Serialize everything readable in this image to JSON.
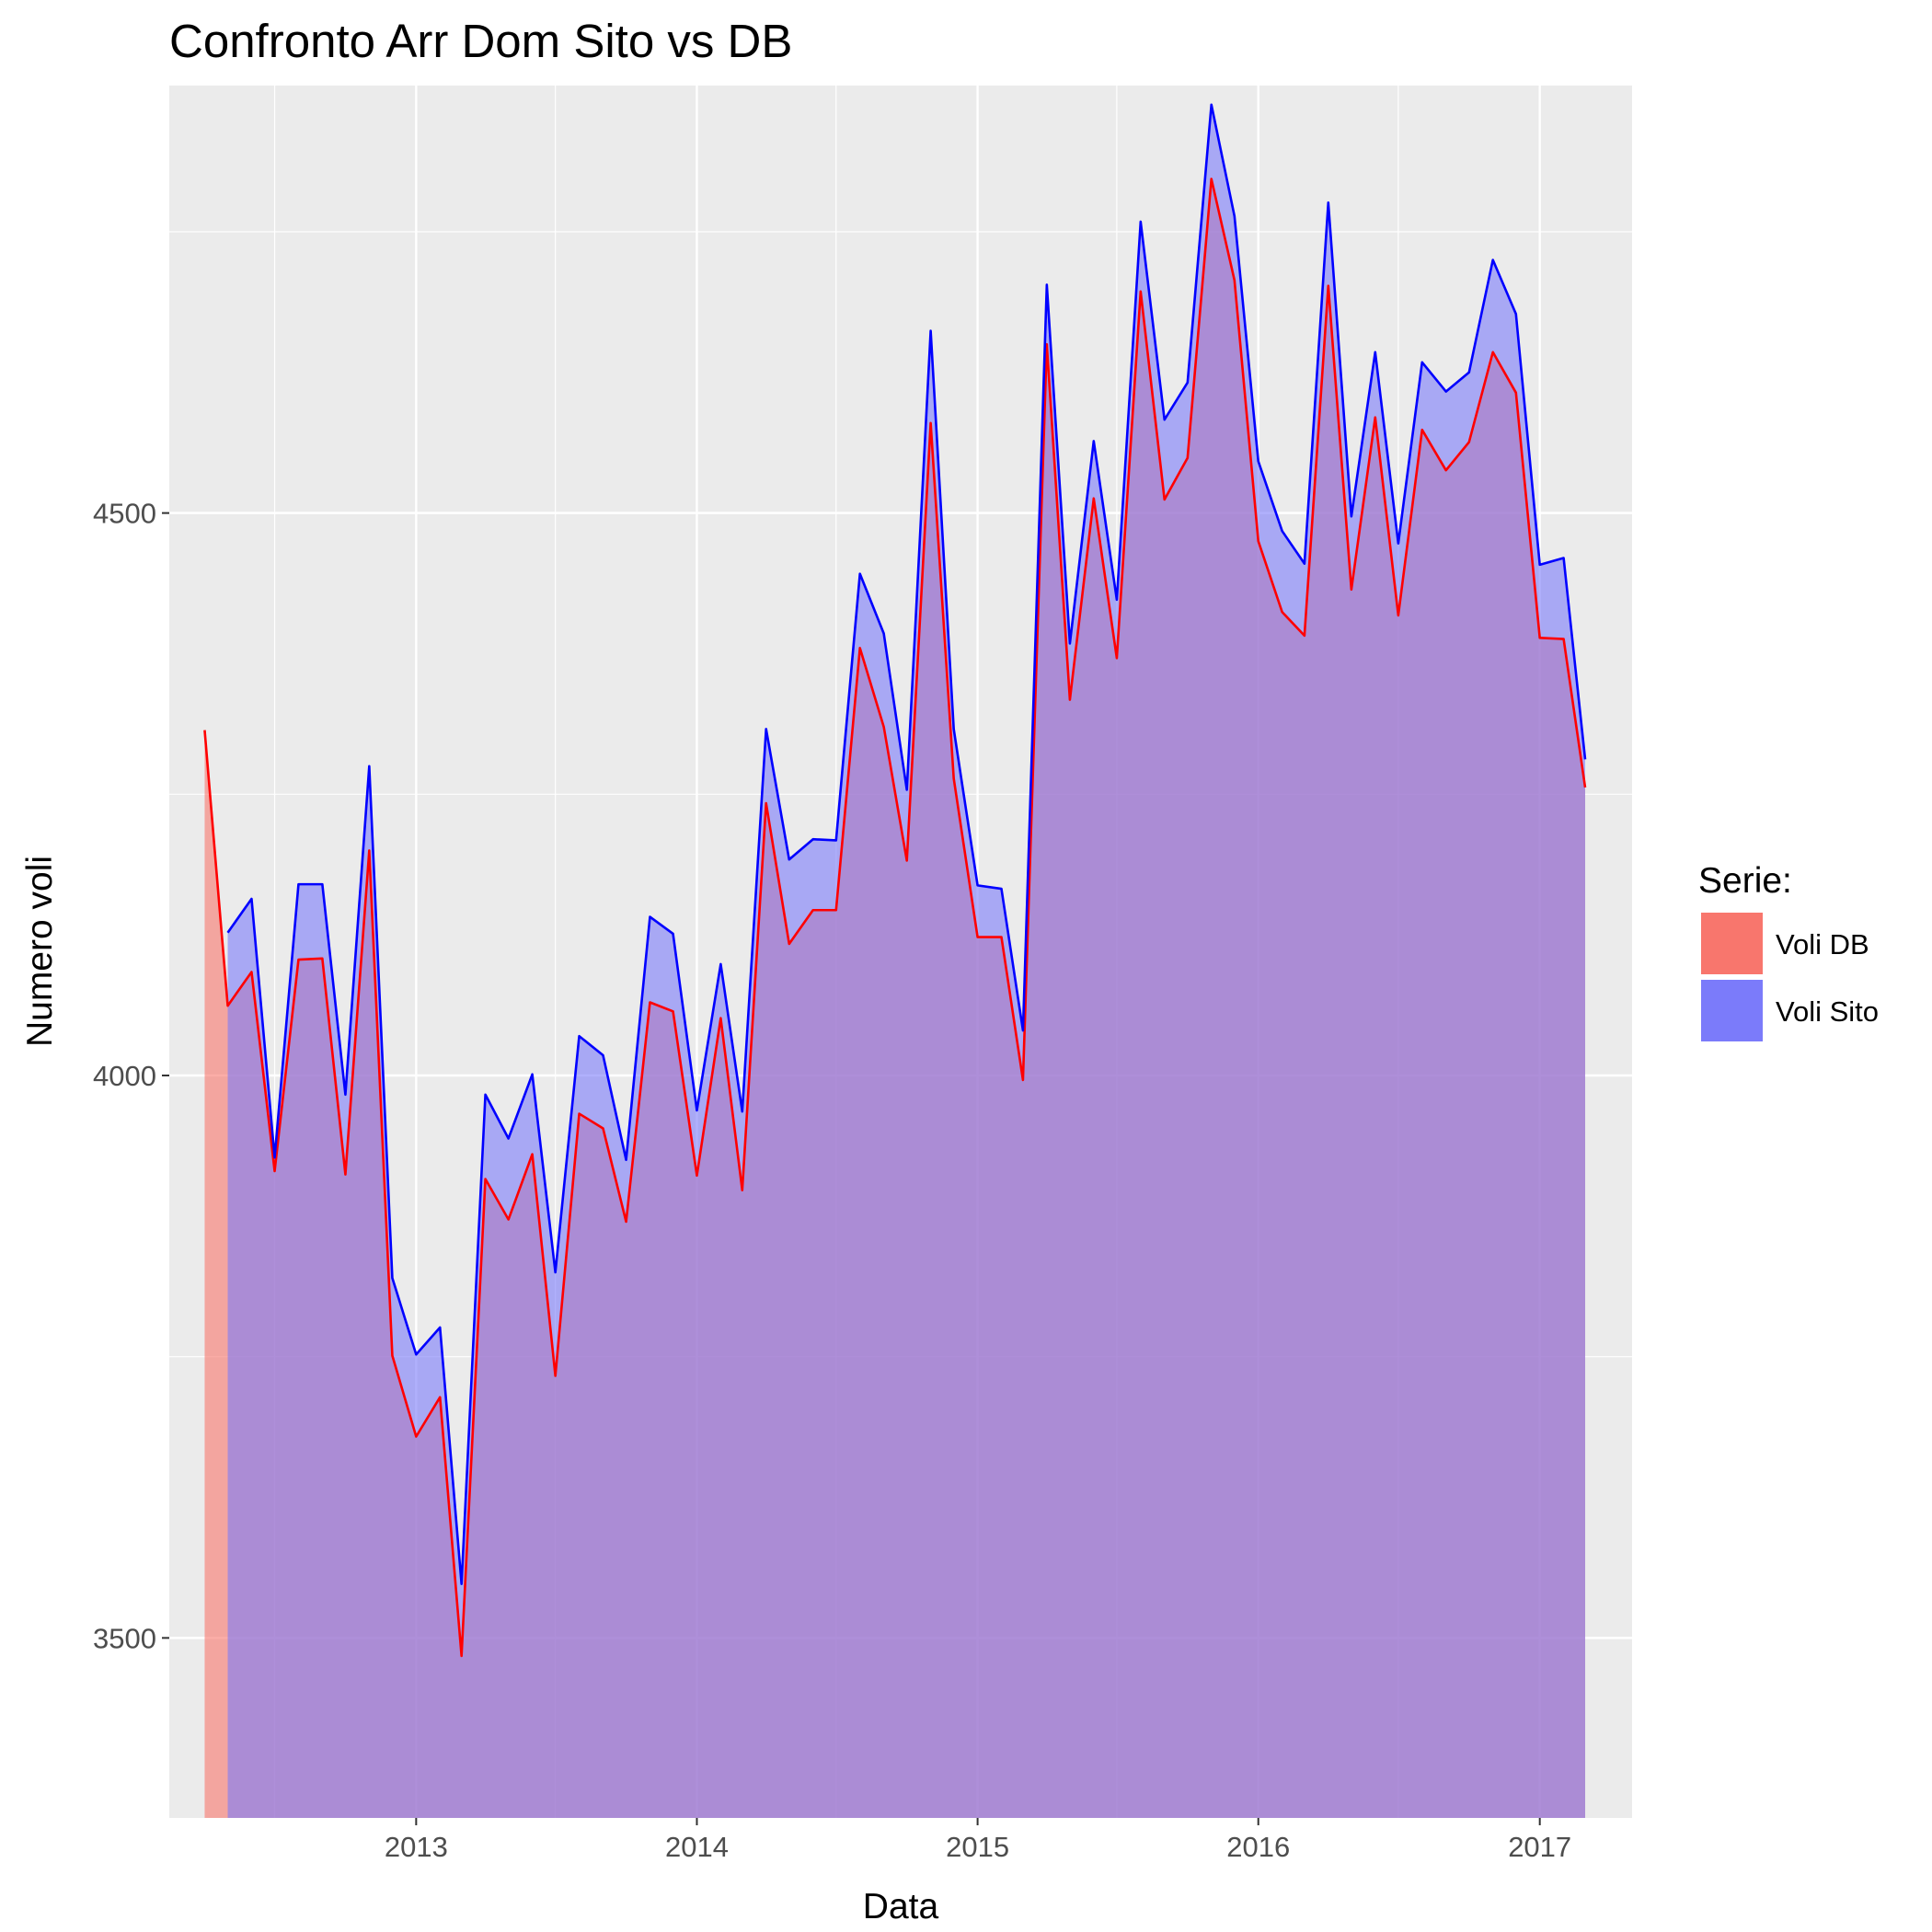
{
  "chart_data": {
    "type": "area",
    "title": "Confronto Arr Dom Sito vs DB",
    "xlabel": "Data",
    "ylabel": "Numero voli",
    "x_ticks": [
      "2013",
      "2014",
      "2015",
      "2016",
      "2017"
    ],
    "y_ticks": [
      "3500",
      "4000",
      "4500"
    ],
    "ylim": [
      3340,
      4880
    ],
    "xlim": [
      "2012-02-15",
      "2017-05-01"
    ],
    "grid": true,
    "background": "#ebebeb",
    "legend": {
      "title": "Serie:",
      "position": "right"
    },
    "series": [
      {
        "name": "Voli DB",
        "line_color": "#ff0000",
        "fill_color": "#f8766d",
        "x": [
          "2012-04-01",
          "2012-05-01",
          "2012-06-01",
          "2012-07-01",
          "2012-08-01",
          "2012-09-01",
          "2012-10-01",
          "2012-11-01",
          "2012-12-01",
          "2013-01-01",
          "2013-02-01",
          "2013-03-01",
          "2013-04-01",
          "2013-05-01",
          "2013-06-01",
          "2013-07-01",
          "2013-08-01",
          "2013-09-01",
          "2013-10-01",
          "2013-11-01",
          "2013-12-01",
          "2014-01-01",
          "2014-02-01",
          "2014-03-01",
          "2014-04-01",
          "2014-05-01",
          "2014-06-01",
          "2014-07-01",
          "2014-08-01",
          "2014-09-01",
          "2014-10-01",
          "2014-11-01",
          "2014-12-01",
          "2015-01-01",
          "2015-02-01",
          "2015-03-01",
          "2015-04-01",
          "2015-05-01",
          "2015-06-01",
          "2015-07-01",
          "2015-08-01",
          "2015-09-01",
          "2015-10-01",
          "2015-11-01",
          "2015-12-01",
          "2016-01-01",
          "2016-02-01",
          "2016-03-01",
          "2016-04-01",
          "2016-05-01",
          "2016-06-01",
          "2016-07-01",
          "2016-08-01",
          "2016-09-01",
          "2016-10-01",
          "2016-11-01",
          "2016-12-01",
          "2017-01-01",
          "2017-02-01",
          "2017-03-01"
        ],
        "values": [
          4307,
          4062,
          4092,
          3915,
          4103,
          4104,
          3912,
          4200,
          3751,
          3679,
          3714,
          3484,
          3908,
          3872,
          3930,
          3733,
          3966,
          3953,
          3870,
          4065,
          4057,
          3911,
          4051,
          3898,
          4242,
          4117,
          4147,
          4147,
          4380,
          4310,
          4191,
          4580,
          4264,
          4123,
          4123,
          3996,
          4650,
          4334,
          4513,
          4371,
          4697,
          4512,
          4549,
          4797,
          4707,
          4475,
          4412,
          4391,
          4702,
          4432,
          4585,
          4409,
          4574,
          4538,
          4563,
          4643,
          4607,
          4389,
          4388,
          4256
        ]
      },
      {
        "name": "Voli Sito",
        "line_color": "#0000ff",
        "fill_color": "#7b7bfa",
        "x": [
          "2012-05-01",
          "2012-06-01",
          "2012-07-01",
          "2012-08-01",
          "2012-09-01",
          "2012-10-01",
          "2012-11-01",
          "2012-12-01",
          "2013-01-01",
          "2013-02-01",
          "2013-03-01",
          "2013-04-01",
          "2013-05-01",
          "2013-06-01",
          "2013-07-01",
          "2013-08-01",
          "2013-09-01",
          "2013-10-01",
          "2013-11-01",
          "2013-12-01",
          "2014-01-01",
          "2014-02-01",
          "2014-03-01",
          "2014-04-01",
          "2014-05-01",
          "2014-06-01",
          "2014-07-01",
          "2014-08-01",
          "2014-09-01",
          "2014-10-01",
          "2014-11-01",
          "2014-12-01",
          "2015-01-01",
          "2015-02-01",
          "2015-03-01",
          "2015-04-01",
          "2015-05-01",
          "2015-06-01",
          "2015-07-01",
          "2015-08-01",
          "2015-09-01",
          "2015-10-01",
          "2015-11-01",
          "2015-12-01",
          "2016-01-01",
          "2016-02-01",
          "2016-03-01",
          "2016-04-01",
          "2016-05-01",
          "2016-06-01",
          "2016-07-01",
          "2016-08-01",
          "2016-09-01",
          "2016-10-01",
          "2016-11-01",
          "2016-12-01",
          "2017-01-01",
          "2017-02-01",
          "2017-03-01"
        ],
        "values": [
          4127,
          4157,
          3927,
          4170,
          4170,
          3983,
          4275,
          3820,
          3752,
          3776,
          3548,
          3983,
          3944,
          4001,
          3825,
          4035,
          4018,
          3925,
          4141,
          4126,
          3969,
          4099,
          3968,
          4308,
          4192,
          4210,
          4209,
          4446,
          4393,
          4254,
          4662,
          4308,
          4169,
          4166,
          4040,
          4703,
          4384,
          4564,
          4423,
          4759,
          4583,
          4616,
          4863,
          4764,
          4546,
          4484,
          4455,
          4776,
          4497,
          4643,
          4473,
          4634,
          4608,
          4625,
          4725,
          4677,
          4454,
          4460,
          4281
        ]
      }
    ]
  }
}
